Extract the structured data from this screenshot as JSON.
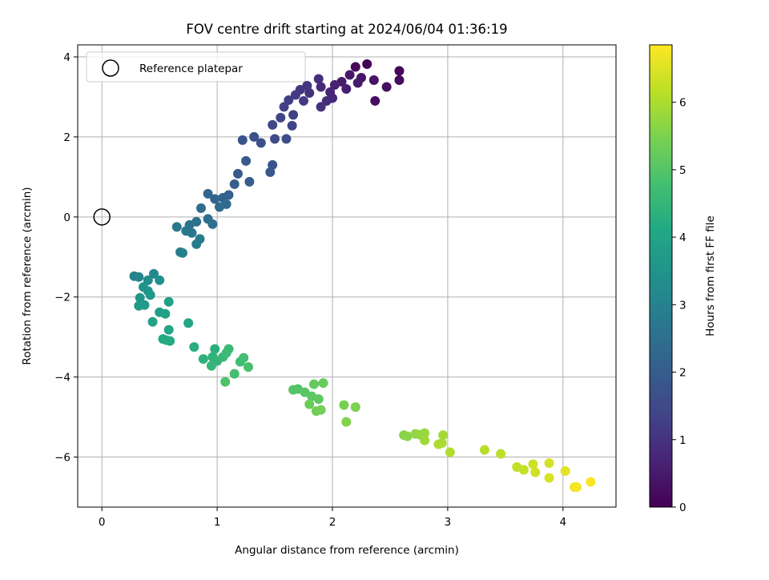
{
  "chart_data": {
    "type": "scatter",
    "title": "FOV centre drift starting at 2024/06/04 01:36:19",
    "xlabel": "Angular distance from reference (arcmin)",
    "ylabel": "Rotation from reference (arcmin)",
    "xlim": [
      -0.21,
      4.46
    ],
    "ylim": [
      -7.25,
      4.3
    ],
    "x_ticks": [
      0,
      1,
      2,
      3,
      4
    ],
    "y_ticks": [
      -6,
      -4,
      -2,
      0,
      2,
      4
    ],
    "x_tick_labels": [
      "0",
      "1",
      "2",
      "3",
      "4"
    ],
    "y_tick_labels": [
      "−6",
      "−4",
      "−2",
      "0",
      "2",
      "4"
    ],
    "grid": true,
    "legend": {
      "placement": "top-left",
      "entries": [
        {
          "label": "Reference platepar",
          "marker": "open-circle"
        }
      ]
    },
    "reference_point": {
      "x": 0,
      "y": 0
    },
    "colorbar": {
      "label": "Hours from first FF file",
      "colormap": "viridis",
      "range": [
        0,
        6.85
      ],
      "ticks": [
        0,
        1,
        2,
        3,
        4,
        5,
        6
      ],
      "tick_labels": [
        "0",
        "1",
        "2",
        "3",
        "4",
        "5",
        "6"
      ]
    },
    "points": [
      {
        "x": 2.3,
        "y": 3.82,
        "h": 0.05
      },
      {
        "x": 2.58,
        "y": 3.65,
        "h": 0.1
      },
      {
        "x": 2.2,
        "y": 3.75,
        "h": 0.15
      },
      {
        "x": 2.58,
        "y": 3.42,
        "h": 0.2
      },
      {
        "x": 2.37,
        "y": 2.9,
        "h": 0.25
      },
      {
        "x": 2.47,
        "y": 3.25,
        "h": 0.3
      },
      {
        "x": 2.36,
        "y": 3.42,
        "h": 0.35
      },
      {
        "x": 2.25,
        "y": 3.48,
        "h": 0.4
      },
      {
        "x": 2.15,
        "y": 3.55,
        "h": 0.45
      },
      {
        "x": 2.22,
        "y": 3.35,
        "h": 0.5
      },
      {
        "x": 2.08,
        "y": 3.38,
        "h": 0.55
      },
      {
        "x": 2.12,
        "y": 3.2,
        "h": 0.6
      },
      {
        "x": 2.02,
        "y": 3.3,
        "h": 0.65
      },
      {
        "x": 1.98,
        "y": 3.12,
        "h": 0.7
      },
      {
        "x": 2.0,
        "y": 2.97,
        "h": 0.75
      },
      {
        "x": 1.9,
        "y": 3.25,
        "h": 0.8
      },
      {
        "x": 1.95,
        "y": 2.9,
        "h": 0.85
      },
      {
        "x": 1.88,
        "y": 3.45,
        "h": 0.9
      },
      {
        "x": 1.8,
        "y": 3.1,
        "h": 0.95
      },
      {
        "x": 1.9,
        "y": 2.75,
        "h": 1.0
      },
      {
        "x": 1.78,
        "y": 3.28,
        "h": 1.05
      },
      {
        "x": 1.72,
        "y": 3.18,
        "h": 1.1
      },
      {
        "x": 1.75,
        "y": 2.9,
        "h": 1.15
      },
      {
        "x": 1.68,
        "y": 3.05,
        "h": 1.2
      },
      {
        "x": 1.62,
        "y": 2.92,
        "h": 1.25
      },
      {
        "x": 1.58,
        "y": 2.75,
        "h": 1.3
      },
      {
        "x": 1.66,
        "y": 2.55,
        "h": 1.35
      },
      {
        "x": 1.65,
        "y": 2.28,
        "h": 1.4
      },
      {
        "x": 1.55,
        "y": 2.48,
        "h": 1.45
      },
      {
        "x": 1.48,
        "y": 2.3,
        "h": 1.5
      },
      {
        "x": 1.5,
        "y": 1.95,
        "h": 1.55
      },
      {
        "x": 1.6,
        "y": 1.95,
        "h": 1.6
      },
      {
        "x": 1.38,
        "y": 1.85,
        "h": 1.65
      },
      {
        "x": 1.32,
        "y": 2.0,
        "h": 1.7
      },
      {
        "x": 1.22,
        "y": 1.92,
        "h": 1.75
      },
      {
        "x": 1.48,
        "y": 1.3,
        "h": 1.8
      },
      {
        "x": 1.46,
        "y": 1.12,
        "h": 1.85
      },
      {
        "x": 1.25,
        "y": 1.4,
        "h": 1.9
      },
      {
        "x": 1.18,
        "y": 1.08,
        "h": 1.95
      },
      {
        "x": 1.28,
        "y": 0.88,
        "h": 2.0
      },
      {
        "x": 1.15,
        "y": 0.82,
        "h": 2.05
      },
      {
        "x": 1.1,
        "y": 0.55,
        "h": 2.1
      },
      {
        "x": 1.05,
        "y": 0.48,
        "h": 2.15
      },
      {
        "x": 0.98,
        "y": 0.45,
        "h": 2.2
      },
      {
        "x": 0.92,
        "y": 0.58,
        "h": 2.25
      },
      {
        "x": 1.08,
        "y": 0.32,
        "h": 2.3
      },
      {
        "x": 1.02,
        "y": 0.25,
        "h": 2.35
      },
      {
        "x": 0.86,
        "y": 0.22,
        "h": 2.4
      },
      {
        "x": 0.92,
        "y": -0.05,
        "h": 2.45
      },
      {
        "x": 0.96,
        "y": -0.18,
        "h": 2.5
      },
      {
        "x": 0.82,
        "y": -0.12,
        "h": 2.55
      },
      {
        "x": 0.76,
        "y": -0.2,
        "h": 2.6
      },
      {
        "x": 0.78,
        "y": -0.4,
        "h": 2.65
      },
      {
        "x": 0.65,
        "y": -0.25,
        "h": 2.7
      },
      {
        "x": 0.73,
        "y": -0.35,
        "h": 2.75
      },
      {
        "x": 0.82,
        "y": -0.68,
        "h": 2.8
      },
      {
        "x": 0.85,
        "y": -0.55,
        "h": 2.85
      },
      {
        "x": 0.68,
        "y": -0.88,
        "h": 2.9
      },
      {
        "x": 0.7,
        "y": -0.9,
        "h": 2.95
      },
      {
        "x": 0.28,
        "y": -1.48,
        "h": 3.0
      },
      {
        "x": 0.32,
        "y": -1.5,
        "h": 3.1
      },
      {
        "x": 0.45,
        "y": -1.42,
        "h": 3.2
      },
      {
        "x": 0.4,
        "y": -1.58,
        "h": 3.3
      },
      {
        "x": 0.5,
        "y": -1.58,
        "h": 3.4
      },
      {
        "x": 0.36,
        "y": -1.75,
        "h": 3.5
      },
      {
        "x": 0.4,
        "y": -1.85,
        "h": 3.55
      },
      {
        "x": 0.33,
        "y": -2.02,
        "h": 3.6
      },
      {
        "x": 0.42,
        "y": -1.95,
        "h": 3.65
      },
      {
        "x": 0.37,
        "y": -2.2,
        "h": 3.7
      },
      {
        "x": 0.32,
        "y": -2.22,
        "h": 3.75
      },
      {
        "x": 0.5,
        "y": -2.38,
        "h": 3.8
      },
      {
        "x": 0.58,
        "y": -2.12,
        "h": 3.85
      },
      {
        "x": 0.55,
        "y": -2.42,
        "h": 3.9
      },
      {
        "x": 0.44,
        "y": -2.62,
        "h": 3.95
      },
      {
        "x": 0.75,
        "y": -2.65,
        "h": 4.0
      },
      {
        "x": 0.58,
        "y": -2.82,
        "h": 4.05
      },
      {
        "x": 0.53,
        "y": -3.05,
        "h": 4.1
      },
      {
        "x": 0.59,
        "y": -3.1,
        "h": 4.15
      },
      {
        "x": 0.56,
        "y": -3.08,
        "h": 4.2
      },
      {
        "x": 0.8,
        "y": -3.25,
        "h": 4.25
      },
      {
        "x": 0.98,
        "y": -3.3,
        "h": 4.3
      },
      {
        "x": 0.88,
        "y": -3.55,
        "h": 4.35
      },
      {
        "x": 0.96,
        "y": -3.5,
        "h": 4.4
      },
      {
        "x": 1.0,
        "y": -3.6,
        "h": 4.45
      },
      {
        "x": 0.95,
        "y": -3.72,
        "h": 4.5
      },
      {
        "x": 1.05,
        "y": -3.5,
        "h": 4.55
      },
      {
        "x": 1.1,
        "y": -3.3,
        "h": 4.6
      },
      {
        "x": 1.08,
        "y": -3.4,
        "h": 4.65
      },
      {
        "x": 1.2,
        "y": -3.62,
        "h": 4.7
      },
      {
        "x": 1.23,
        "y": -3.52,
        "h": 4.75
      },
      {
        "x": 1.15,
        "y": -3.92,
        "h": 4.8
      },
      {
        "x": 1.27,
        "y": -3.75,
        "h": 4.85
      },
      {
        "x": 1.07,
        "y": -4.12,
        "h": 4.9
      },
      {
        "x": 1.7,
        "y": -4.3,
        "h": 4.95
      },
      {
        "x": 1.66,
        "y": -4.32,
        "h": 5.0
      },
      {
        "x": 1.76,
        "y": -4.38,
        "h": 5.05
      },
      {
        "x": 1.82,
        "y": -4.48,
        "h": 5.1
      },
      {
        "x": 1.88,
        "y": -4.55,
        "h": 5.15
      },
      {
        "x": 1.84,
        "y": -4.18,
        "h": 5.2
      },
      {
        "x": 1.92,
        "y": -4.15,
        "h": 5.25
      },
      {
        "x": 1.8,
        "y": -4.68,
        "h": 5.3
      },
      {
        "x": 1.86,
        "y": -4.85,
        "h": 5.35
      },
      {
        "x": 1.9,
        "y": -4.82,
        "h": 5.4
      },
      {
        "x": 2.1,
        "y": -4.7,
        "h": 5.45
      },
      {
        "x": 2.2,
        "y": -4.75,
        "h": 5.5
      },
      {
        "x": 2.12,
        "y": -5.12,
        "h": 5.55
      },
      {
        "x": 2.62,
        "y": -5.45,
        "h": 5.6
      },
      {
        "x": 2.65,
        "y": -5.48,
        "h": 5.65
      },
      {
        "x": 2.72,
        "y": -5.42,
        "h": 5.7
      },
      {
        "x": 2.76,
        "y": -5.44,
        "h": 5.75
      },
      {
        "x": 2.8,
        "y": -5.4,
        "h": 5.8
      },
      {
        "x": 2.8,
        "y": -5.58,
        "h": 5.85
      },
      {
        "x": 2.96,
        "y": -5.45,
        "h": 5.9
      },
      {
        "x": 2.95,
        "y": -5.65,
        "h": 5.95
      },
      {
        "x": 2.92,
        "y": -5.68,
        "h": 6.0
      },
      {
        "x": 3.02,
        "y": -5.88,
        "h": 6.05
      },
      {
        "x": 3.32,
        "y": -5.82,
        "h": 6.1
      },
      {
        "x": 3.46,
        "y": -5.92,
        "h": 6.15
      },
      {
        "x": 3.6,
        "y": -6.25,
        "h": 6.2
      },
      {
        "x": 3.66,
        "y": -6.32,
        "h": 6.25
      },
      {
        "x": 3.74,
        "y": -6.18,
        "h": 6.3
      },
      {
        "x": 3.76,
        "y": -6.38,
        "h": 6.35
      },
      {
        "x": 3.88,
        "y": -6.15,
        "h": 6.4
      },
      {
        "x": 3.88,
        "y": -6.52,
        "h": 6.45
      },
      {
        "x": 4.02,
        "y": -6.35,
        "h": 6.55
      },
      {
        "x": 4.1,
        "y": -6.75,
        "h": 6.65
      },
      {
        "x": 4.12,
        "y": -6.75,
        "h": 6.75
      },
      {
        "x": 4.24,
        "y": -6.62,
        "h": 6.8
      }
    ]
  }
}
